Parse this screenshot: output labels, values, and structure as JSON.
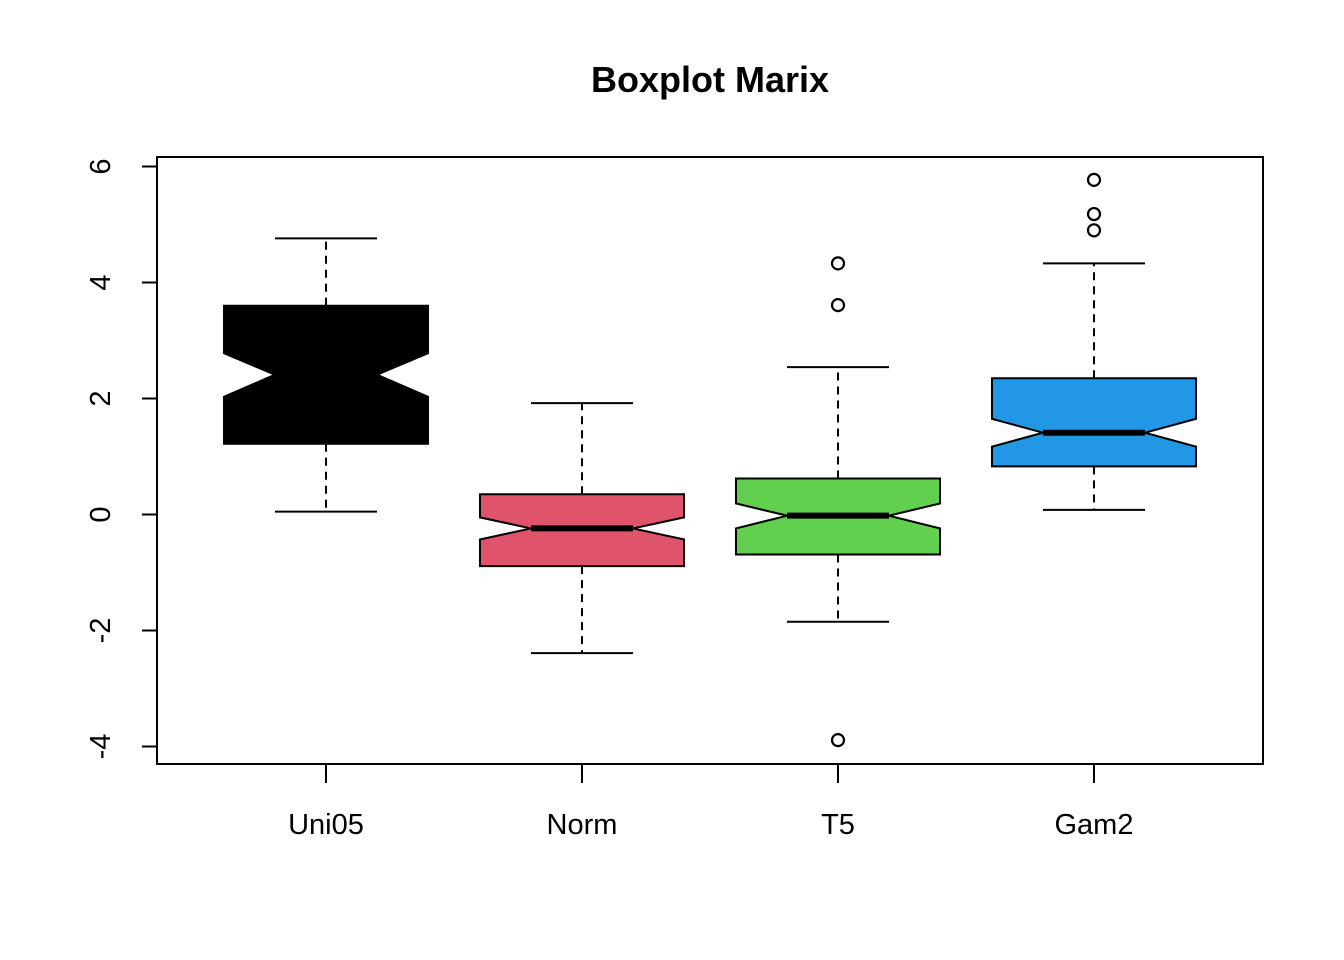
{
  "chart_data": {
    "type": "boxplot",
    "title": "Boxplot Marix",
    "xlabel": "",
    "ylabel": "",
    "notched": true,
    "ylim": [
      -4.3,
      6.2
    ],
    "yticks": [
      -4,
      -2,
      0,
      2,
      4,
      6
    ],
    "ytick_labels": [
      "-4",
      "-2",
      "0",
      "2",
      "4",
      "6"
    ],
    "categories": [
      "Uni05",
      "Norm",
      "T5",
      "Gam2"
    ],
    "grid": false,
    "series": [
      {
        "category": "Uni05",
        "color": "#000000",
        "whisker_low": 0.05,
        "q1": 1.22,
        "median": 2.41,
        "q3": 3.6,
        "whisker_high": 4.76,
        "notch_low": 2.03,
        "notch_high": 2.78,
        "outliers": []
      },
      {
        "category": "Norm",
        "color": "#DF536B",
        "whisker_low": -2.39,
        "q1": -0.89,
        "median": -0.24,
        "q3": 0.35,
        "whisker_high": 1.92,
        "notch_low": -0.43,
        "notch_high": -0.05,
        "outliers": []
      },
      {
        "category": "T5",
        "color": "#61D04F",
        "whisker_low": -1.85,
        "q1": -0.69,
        "median": -0.02,
        "q3": 0.62,
        "whisker_high": 2.54,
        "notch_low": -0.24,
        "notch_high": 0.19,
        "outliers": [
          -3.89,
          3.61,
          4.33
        ]
      },
      {
        "category": "Gam2",
        "color": "#2297E6",
        "whisker_low": 0.08,
        "q1": 0.83,
        "median": 1.41,
        "q3": 2.35,
        "whisker_high": 4.33,
        "notch_low": 1.17,
        "notch_high": 1.65,
        "outliers": [
          4.9,
          5.18,
          5.77
        ]
      }
    ]
  }
}
